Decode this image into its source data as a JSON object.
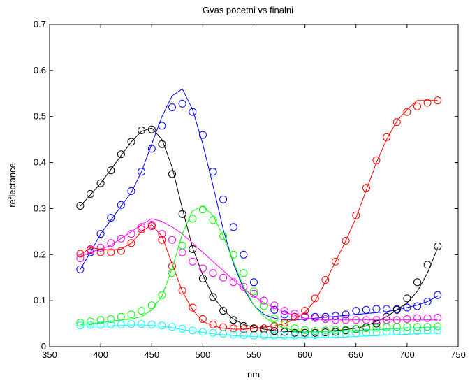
{
  "chart_data": {
    "type": "line",
    "title": "Gvas pocetni vs finalni",
    "xlabel": "nm",
    "ylabel": "reflectance",
    "xlim": [
      350,
      750
    ],
    "ylim": [
      0,
      0.7
    ],
    "xticks": [
      350,
      400,
      450,
      500,
      550,
      600,
      650,
      700,
      750
    ],
    "yticks": [
      0,
      0.1,
      0.2,
      0.3,
      0.4,
      0.5,
      0.6,
      0.7
    ],
    "ytick_labels": [
      "0",
      "0.1",
      "0.2",
      "0.3",
      "0.4",
      "0.5",
      "0.6",
      "0.7"
    ],
    "grid": false,
    "legend": "none",
    "x": [
      380,
      390,
      400,
      410,
      420,
      430,
      440,
      450,
      460,
      470,
      480,
      490,
      500,
      510,
      520,
      530,
      540,
      550,
      560,
      570,
      580,
      590,
      600,
      610,
      620,
      630,
      640,
      650,
      660,
      670,
      680,
      690,
      700,
      710,
      720,
      730
    ],
    "series": [
      {
        "color": "#0000ff",
        "line": [
          0.168,
          0.205,
          0.245,
          0.275,
          0.305,
          0.335,
          0.38,
          0.44,
          0.5,
          0.545,
          0.56,
          0.515,
          0.44,
          0.35,
          0.255,
          0.18,
          0.125,
          0.09,
          0.07,
          0.062,
          0.058,
          0.058,
          0.06,
          0.062,
          0.064,
          0.066,
          0.068,
          0.07,
          0.072,
          0.074,
          0.076,
          0.08,
          0.085,
          0.09,
          0.098,
          0.11
        ],
        "markers": [
          0.168,
          0.205,
          0.245,
          0.28,
          0.308,
          0.338,
          0.38,
          0.43,
          0.48,
          0.52,
          0.528,
          0.51,
          0.46,
          0.38,
          0.32,
          0.26,
          0.2,
          0.14,
          0.1,
          0.08,
          0.07,
          0.065,
          0.065,
          0.065,
          0.065,
          0.067,
          0.07,
          0.078,
          0.08,
          0.082,
          0.082,
          0.082,
          0.085,
          0.088,
          0.098,
          0.112
        ]
      },
      {
        "color": "#000000",
        "line": [
          0.305,
          0.33,
          0.355,
          0.385,
          0.415,
          0.445,
          0.468,
          0.475,
          0.45,
          0.39,
          0.3,
          0.215,
          0.155,
          0.11,
          0.08,
          0.06,
          0.048,
          0.042,
          0.038,
          0.035,
          0.033,
          0.032,
          0.032,
          0.033,
          0.034,
          0.035,
          0.037,
          0.04,
          0.045,
          0.055,
          0.065,
          0.08,
          0.095,
          0.12,
          0.16,
          0.215
        ],
        "markers": [
          0.306,
          0.332,
          0.355,
          0.383,
          0.418,
          0.445,
          0.47,
          0.472,
          0.44,
          0.375,
          0.288,
          0.212,
          0.148,
          0.108,
          0.078,
          0.058,
          0.045,
          0.04,
          0.037,
          0.034,
          0.032,
          0.03,
          0.03,
          0.03,
          0.031,
          0.032,
          0.035,
          0.038,
          0.042,
          0.05,
          0.065,
          0.08,
          0.105,
          0.14,
          0.178,
          0.218
        ]
      },
      {
        "color": "#ff00ff",
        "line": [
          0.195,
          0.205,
          0.212,
          0.22,
          0.235,
          0.25,
          0.265,
          0.278,
          0.272,
          0.26,
          0.245,
          0.225,
          0.205,
          0.185,
          0.165,
          0.145,
          0.125,
          0.11,
          0.095,
          0.085,
          0.075,
          0.068,
          0.062,
          0.06,
          0.058,
          0.058,
          0.058,
          0.058,
          0.058,
          0.058,
          0.058,
          0.058,
          0.058,
          0.058,
          0.058,
          0.058
        ],
        "markers": [
          0.192,
          0.212,
          0.215,
          0.225,
          0.235,
          0.245,
          0.26,
          0.265,
          0.245,
          0.232,
          0.205,
          0.185,
          0.17,
          0.16,
          0.15,
          0.14,
          0.13,
          0.115,
          0.1,
          0.09,
          0.078,
          0.072,
          0.066,
          0.062,
          0.06,
          0.058,
          0.058,
          0.058,
          0.058,
          0.058,
          0.058,
          0.058,
          0.06,
          0.062,
          0.062,
          0.063
        ]
      },
      {
        "color": "#ff0000",
        "line": [
          0.2,
          0.215,
          0.212,
          0.21,
          0.212,
          0.225,
          0.25,
          0.265,
          0.24,
          0.18,
          0.12,
          0.08,
          0.055,
          0.045,
          0.04,
          0.038,
          0.038,
          0.04,
          0.042,
          0.045,
          0.05,
          0.06,
          0.075,
          0.1,
          0.14,
          0.185,
          0.23,
          0.28,
          0.34,
          0.4,
          0.45,
          0.49,
          0.515,
          0.535,
          0.535,
          0.535
        ],
        "markers": [
          0.202,
          0.21,
          0.205,
          0.205,
          0.208,
          0.225,
          0.255,
          0.262,
          0.232,
          0.175,
          0.122,
          0.085,
          0.06,
          0.048,
          0.042,
          0.04,
          0.038,
          0.038,
          0.04,
          0.045,
          0.052,
          0.065,
          0.078,
          0.105,
          0.145,
          0.185,
          0.23,
          0.285,
          0.345,
          0.405,
          0.455,
          0.488,
          0.51,
          0.522,
          0.53,
          0.535
        ]
      },
      {
        "color": "#00ff00",
        "line": [
          0.048,
          0.05,
          0.052,
          0.055,
          0.058,
          0.06,
          0.065,
          0.08,
          0.11,
          0.17,
          0.245,
          0.295,
          0.305,
          0.285,
          0.24,
          0.185,
          0.13,
          0.09,
          0.065,
          0.05,
          0.04,
          0.035,
          0.033,
          0.032,
          0.033,
          0.033,
          0.034,
          0.035,
          0.036,
          0.037,
          0.038,
          0.039,
          0.04,
          0.041,
          0.042,
          0.043
        ],
        "markers": [
          0.052,
          0.055,
          0.058,
          0.06,
          0.065,
          0.07,
          0.078,
          0.09,
          0.112,
          0.16,
          0.22,
          0.278,
          0.298,
          0.275,
          0.24,
          0.2,
          0.16,
          0.12,
          0.088,
          0.062,
          0.048,
          0.04,
          0.036,
          0.034,
          0.035,
          0.036,
          0.037,
          0.039,
          0.04,
          0.041,
          0.042,
          0.043,
          0.043,
          0.043,
          0.043,
          0.044
        ]
      },
      {
        "color": "#00ffff",
        "line": [
          0.045,
          0.045,
          0.045,
          0.045,
          0.046,
          0.047,
          0.047,
          0.046,
          0.044,
          0.041,
          0.037,
          0.034,
          0.031,
          0.028,
          0.026,
          0.024,
          0.023,
          0.022,
          0.021,
          0.02,
          0.02,
          0.02,
          0.02,
          0.02,
          0.02,
          0.02,
          0.021,
          0.022,
          0.023,
          0.024,
          0.025,
          0.026,
          0.027,
          0.028,
          0.029,
          0.03
        ],
        "markers": [
          0.046,
          0.047,
          0.047,
          0.048,
          0.048,
          0.049,
          0.049,
          0.048,
          0.046,
          0.043,
          0.039,
          0.035,
          0.032,
          0.03,
          0.028,
          0.026,
          0.025,
          0.024,
          0.024,
          0.024,
          0.024,
          0.024,
          0.025,
          0.025,
          0.026,
          0.027,
          0.028,
          0.029,
          0.03,
          0.031,
          0.032,
          0.033,
          0.034,
          0.034,
          0.035,
          0.035
        ]
      }
    ]
  }
}
